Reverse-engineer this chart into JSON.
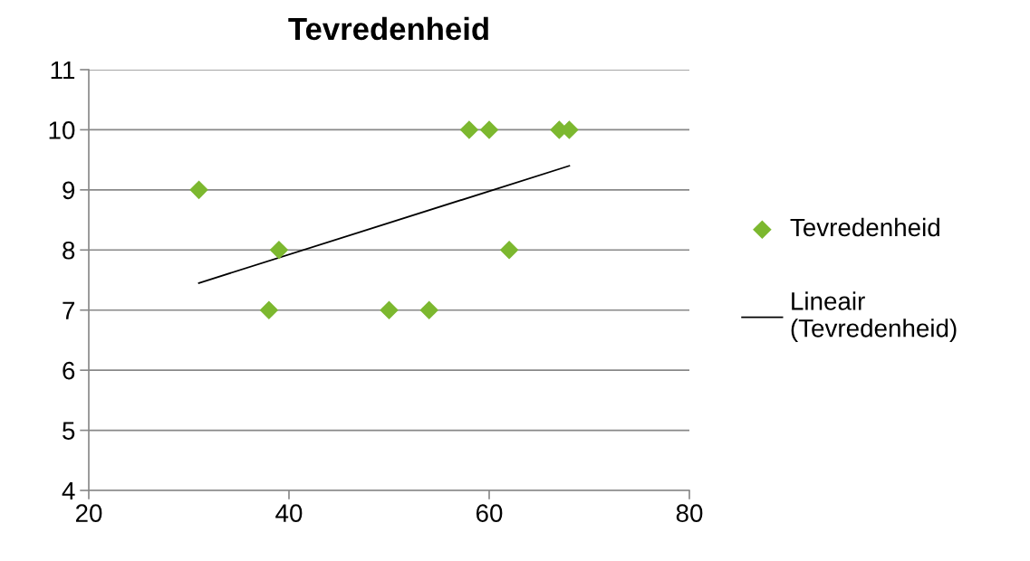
{
  "chart_data": {
    "type": "scatter",
    "title": "Tevredenheid",
    "xlim": [
      20,
      80
    ],
    "xticks": [
      20,
      40,
      60,
      80
    ],
    "ylim": [
      4,
      11
    ],
    "yticks": [
      4,
      5,
      6,
      7,
      8,
      9,
      10,
      11
    ],
    "grid": "y",
    "legend": "right",
    "series": [
      {
        "name": "Tevredenheid",
        "marker": "diamond",
        "color": "#7cb82f",
        "x": [
          31,
          39,
          38,
          50,
          54,
          58,
          60,
          62,
          67,
          68
        ],
        "values": [
          9,
          8,
          7,
          7,
          7,
          10,
          10,
          8,
          10,
          10
        ]
      },
      {
        "name": "Lineair (Tevredenheid)",
        "type": "line",
        "marker": "none",
        "line_style": "solid",
        "color": "#000000",
        "x": [
          31,
          68
        ],
        "values": [
          7.45,
          9.4
        ]
      }
    ]
  }
}
